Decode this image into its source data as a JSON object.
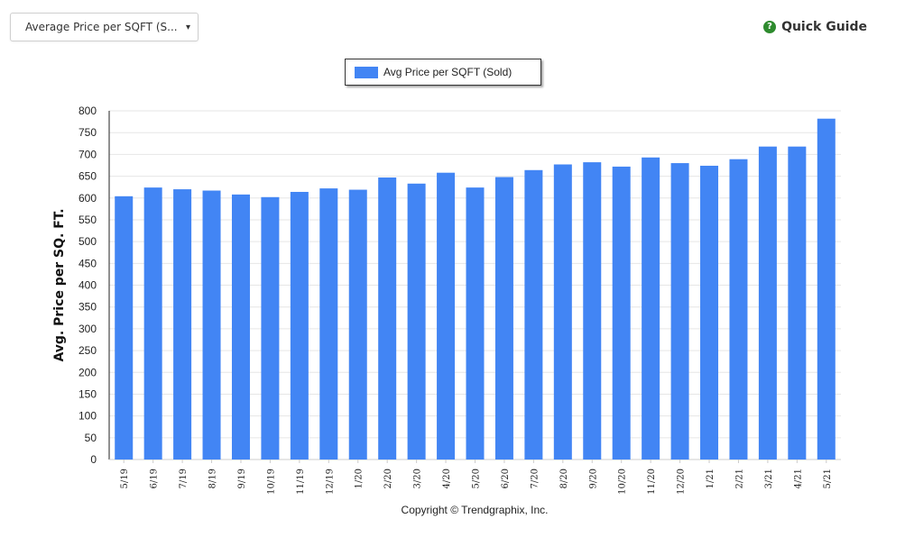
{
  "toolbar": {
    "dropdown_label": "Average Price per SQFT (S...",
    "dropdown_caret": "▾",
    "quick_guide_label": "Quick Guide",
    "quick_guide_icon": "?"
  },
  "footer": {
    "copyright": "Copyright © Trendgraphix, Inc."
  },
  "colors": {
    "bar": "#4285f4",
    "grid": "#e6e6e6",
    "axis": "#222222",
    "quick_guide_icon": "#2e8b2e"
  },
  "chart_data": {
    "type": "bar",
    "title": "",
    "xlabel": "",
    "ylabel": "Avg. Price per SQ. FT.",
    "ylim": [
      0,
      800
    ],
    "yticks": [
      0,
      50,
      100,
      150,
      200,
      250,
      300,
      350,
      400,
      450,
      500,
      550,
      600,
      650,
      700,
      750,
      800
    ],
    "grid": true,
    "legend_position": "top-center",
    "categories": [
      "5/19",
      "6/19",
      "7/19",
      "8/19",
      "9/19",
      "10/19",
      "11/19",
      "12/19",
      "1/20",
      "2/20",
      "3/20",
      "4/20",
      "5/20",
      "6/20",
      "7/20",
      "8/20",
      "9/20",
      "10/20",
      "11/20",
      "12/20",
      "1/21",
      "2/21",
      "3/21",
      "4/21",
      "5/21"
    ],
    "series": [
      {
        "name": "Avg Price per SQFT (Sold)",
        "values": [
          604,
          624,
          620,
          617,
          608,
          602,
          614,
          622,
          619,
          647,
          633,
          658,
          624,
          648,
          664,
          677,
          682,
          672,
          693,
          680,
          674,
          689,
          718,
          718,
          782
        ]
      }
    ]
  }
}
